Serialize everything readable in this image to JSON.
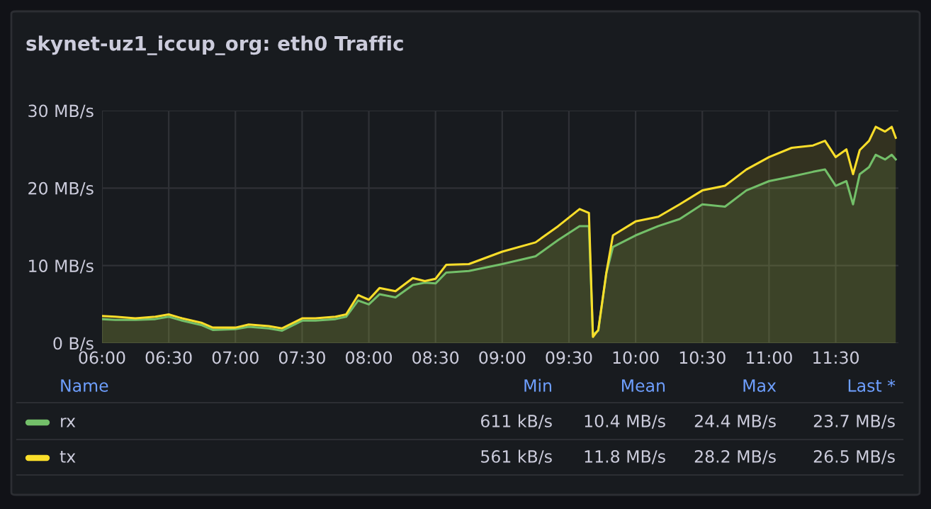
{
  "chart_data": {
    "type": "area",
    "title": "skynet-uz1_iccup_org: eth0 Traffic",
    "x": [
      6.0,
      6.1,
      6.25,
      6.4,
      6.5,
      6.6,
      6.75,
      6.83,
      7.0,
      7.1,
      7.25,
      7.35,
      7.5,
      7.6,
      7.75,
      7.83,
      7.92,
      8.0,
      8.08,
      8.2,
      8.33,
      8.42,
      8.5,
      8.58,
      8.75,
      9.0,
      9.25,
      9.42,
      9.58,
      9.65,
      9.68,
      9.72,
      9.78,
      9.83,
      10.0,
      10.17,
      10.33,
      10.5,
      10.67,
      10.83,
      11.0,
      11.17,
      11.33,
      11.42,
      11.5,
      11.58,
      11.63,
      11.68,
      11.75,
      11.8,
      11.87,
      11.92,
      11.95
    ],
    "series": [
      {
        "name": "rx",
        "color": "#73bf69",
        "values": [
          3.1,
          3.0,
          3.0,
          3.1,
          3.4,
          2.9,
          2.3,
          1.7,
          1.8,
          2.1,
          1.9,
          1.6,
          2.9,
          2.9,
          3.1,
          3.4,
          5.5,
          5.0,
          6.3,
          5.9,
          7.5,
          7.8,
          7.7,
          9.1,
          9.3,
          10.2,
          11.2,
          13.3,
          15.1,
          15.1,
          1.1,
          1.6,
          9.0,
          12.4,
          13.9,
          15.1,
          16.0,
          17.9,
          17.6,
          19.7,
          20.9,
          21.5,
          22.1,
          22.4,
          20.3,
          20.9,
          17.9,
          21.8,
          22.7,
          24.3,
          23.7,
          24.3,
          23.7
        ]
      },
      {
        "name": "tx",
        "color": "#fade2a",
        "values": [
          3.5,
          3.4,
          3.2,
          3.4,
          3.7,
          3.2,
          2.6,
          2.0,
          2.0,
          2.4,
          2.2,
          1.9,
          3.2,
          3.2,
          3.4,
          3.7,
          6.2,
          5.6,
          7.1,
          6.7,
          8.4,
          8.0,
          8.3,
          10.1,
          10.2,
          11.8,
          13.0,
          15.1,
          17.3,
          16.8,
          0.8,
          1.7,
          9.0,
          13.9,
          15.7,
          16.3,
          17.9,
          19.7,
          20.3,
          22.4,
          24.0,
          25.2,
          25.5,
          26.1,
          24.0,
          25.0,
          21.8,
          24.9,
          26.1,
          27.9,
          27.3,
          27.9,
          26.5
        ]
      }
    ],
    "xlim": [
      6.0,
      11.97
    ],
    "ylim": [
      0,
      30
    ],
    "xticks": [
      {
        "value": 6.0,
        "label": "06:00"
      },
      {
        "value": 6.5,
        "label": "06:30"
      },
      {
        "value": 7.0,
        "label": "07:00"
      },
      {
        "value": 7.5,
        "label": "07:30"
      },
      {
        "value": 8.0,
        "label": "08:00"
      },
      {
        "value": 8.5,
        "label": "08:30"
      },
      {
        "value": 9.0,
        "label": "09:00"
      },
      {
        "value": 9.5,
        "label": "09:30"
      },
      {
        "value": 10.0,
        "label": "10:00"
      },
      {
        "value": 10.5,
        "label": "10:30"
      },
      {
        "value": 11.0,
        "label": "11:00"
      },
      {
        "value": 11.5,
        "label": "11:30"
      }
    ],
    "yticks": [
      {
        "value": 0,
        "label": "0 B/s"
      },
      {
        "value": 10,
        "label": "10 MB/s"
      },
      {
        "value": 20,
        "label": "20 MB/s"
      },
      {
        "value": 30,
        "label": "30 MB/s"
      }
    ],
    "grid": true,
    "legend": "bottom",
    "annotations": [
      "Name",
      "Min",
      "Mean",
      "Max",
      "Last *",
      "611 kB/s",
      "10.4 MB/s",
      "24.4 MB/s",
      "23.7 MB/s",
      "561 kB/s",
      "11.8 MB/s",
      "28.2 MB/s",
      "26.5 MB/s"
    ]
  }
}
